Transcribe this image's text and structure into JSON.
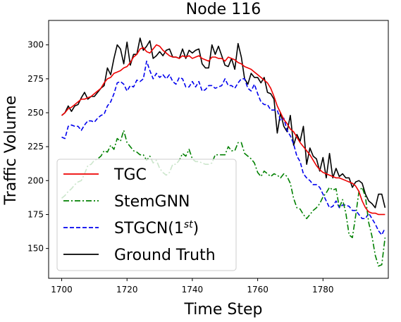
{
  "chart_data": {
    "type": "line",
    "title": "Node 116",
    "xlabel": "Time Step",
    "ylabel": "Traffic Volume",
    "xlim": [
      1696,
      1800
    ],
    "ylim": [
      128,
      318
    ],
    "xticks": [
      1700,
      1720,
      1740,
      1760,
      1780
    ],
    "yticks": [
      150,
      175,
      200,
      225,
      250,
      275,
      300
    ],
    "grid": false,
    "legend_position": "lower-left",
    "x_start": 1700,
    "series": [
      {
        "name": "TGC",
        "color": "#ee0000",
        "dash": "solid",
        "values": [
          248,
          250,
          253,
          254,
          256,
          258,
          260,
          260,
          261,
          262,
          264,
          266,
          268,
          272,
          275,
          276,
          279,
          280,
          281,
          283,
          284,
          287,
          291,
          293,
          297,
          298,
          295,
          294,
          297,
          300,
          299,
          296,
          294,
          292,
          291,
          291,
          290,
          292,
          291,
          292,
          290,
          291,
          292,
          290,
          289,
          288,
          291,
          291,
          290,
          290,
          288,
          291,
          290,
          289,
          287,
          286,
          284,
          283,
          282,
          280,
          278,
          276,
          274,
          272,
          268,
          262,
          255,
          250,
          245,
          242,
          238,
          236,
          232,
          228,
          225,
          222,
          219,
          215,
          211,
          208,
          206,
          205,
          204,
          203,
          202,
          202,
          201,
          200,
          199,
          198,
          196,
          192,
          185,
          180,
          177,
          176,
          176,
          175,
          175,
          175
        ]
      },
      {
        "name": "StemGNN",
        "color": "#008000",
        "dash": "dashdot",
        "values": [
          187,
          189,
          192,
          194,
          197,
          199,
          200,
          205,
          211,
          212,
          215,
          216,
          218,
          222,
          221,
          226,
          223,
          231,
          229,
          237,
          228,
          225,
          222,
          221,
          219,
          219,
          215,
          218,
          213,
          215,
          209,
          206,
          204,
          206,
          212,
          212,
          215,
          220,
          218,
          223,
          216,
          214,
          214,
          213,
          212,
          212,
          213,
          219,
          219,
          219,
          219,
          225,
          222,
          222,
          228,
          228,
          220,
          218,
          216,
          213,
          206,
          203,
          207,
          205,
          203,
          205,
          204,
          202,
          205,
          203,
          198,
          187,
          180,
          179,
          175,
          172,
          175,
          178,
          180,
          183,
          188,
          191,
          195,
          193,
          194,
          180,
          186,
          176,
          160,
          158,
          174,
          192,
          195,
          188,
          169,
          159,
          145,
          137,
          138,
          158
        ]
      },
      {
        "name": "STGCN(1st)",
        "color": "#0000ee",
        "dash": "dashed",
        "values": [
          232,
          231,
          240,
          241,
          240,
          240,
          237,
          241,
          244,
          244,
          243,
          246,
          248,
          249,
          255,
          258,
          264,
          272,
          273,
          271,
          266,
          270,
          269,
          274,
          273,
          275,
          288,
          281,
          275,
          279,
          276,
          278,
          275,
          278,
          273,
          271,
          276,
          275,
          269,
          269,
          273,
          269,
          273,
          266,
          267,
          270,
          270,
          268,
          269,
          270,
          275,
          270,
          270,
          268,
          272,
          275,
          275,
          268,
          266,
          271,
          264,
          258,
          256,
          256,
          252,
          252,
          252,
          244,
          246,
          237,
          233,
          227,
          218,
          214,
          205,
          202,
          200,
          197,
          197,
          195,
          190,
          185,
          180,
          181,
          185,
          180,
          182,
          182,
          181,
          178,
          178,
          175,
          172,
          172,
          176,
          172,
          168,
          163,
          160,
          165
        ]
      },
      {
        "name": "Ground Truth",
        "color": "#000000",
        "dash": "solid",
        "values": [
          248,
          250,
          255,
          251,
          255,
          256,
          261,
          265,
          260,
          262,
          262,
          265,
          268,
          270,
          283,
          278,
          290,
          300,
          297,
          286,
          302,
          285,
          293,
          293,
          305,
          296,
          299,
          303,
          290,
          292,
          295,
          292,
          296,
          297,
          291,
          291,
          290,
          297,
          290,
          296,
          294,
          296,
          297,
          286,
          283,
          283,
          300,
          293,
          299,
          292,
          285,
          284,
          290,
          282,
          301,
          291,
          275,
          271,
          279,
          276,
          276,
          272,
          276,
          265,
          264,
          260,
          235,
          250,
          240,
          236,
          248,
          226,
          234,
          229,
          240,
          212,
          224,
          218,
          216,
          207,
          217,
          202,
          220,
          202,
          209,
          203,
          205,
          202,
          202,
          195,
          199,
          200,
          198,
          190,
          185,
          183,
          180,
          190,
          190,
          180
        ]
      }
    ]
  }
}
